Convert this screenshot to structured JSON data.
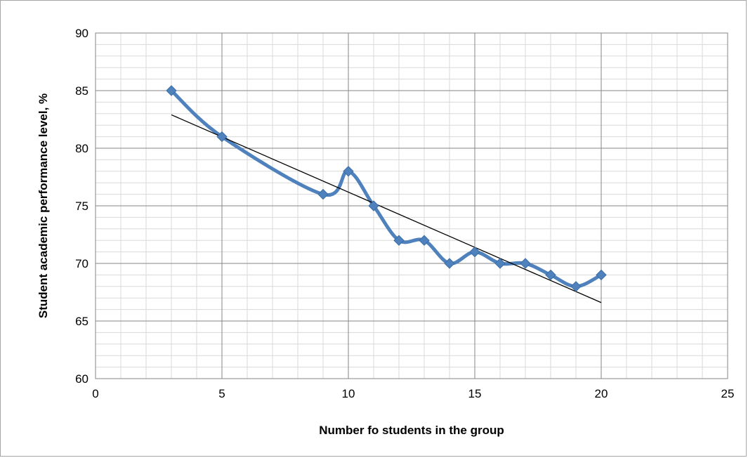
{
  "chart_data": {
    "type": "scatter",
    "title": "",
    "xlabel": "Number fo students in the group",
    "ylabel": "Student academic performance level, %",
    "xlim": [
      0,
      25
    ],
    "ylim": [
      60,
      90
    ],
    "x_ticks": [
      0,
      5,
      10,
      15,
      20,
      25
    ],
    "y_ticks": [
      60,
      65,
      70,
      75,
      80,
      85,
      90
    ],
    "grid": true,
    "legend": "none",
    "series": [
      {
        "style": "smoothed line with diamond markers",
        "color": "#4f81bd",
        "x": [
          3,
          5,
          9,
          10,
          11,
          12,
          13,
          14,
          15,
          16,
          17,
          18,
          19,
          20
        ],
        "y": [
          85,
          81,
          76,
          78,
          75,
          72,
          72,
          70,
          71,
          70,
          70,
          69,
          68,
          69
        ]
      }
    ],
    "trendline": {
      "type": "linear",
      "color": "#000000",
      "x": [
        3,
        20
      ],
      "y": [
        82.9,
        66.6
      ]
    }
  }
}
